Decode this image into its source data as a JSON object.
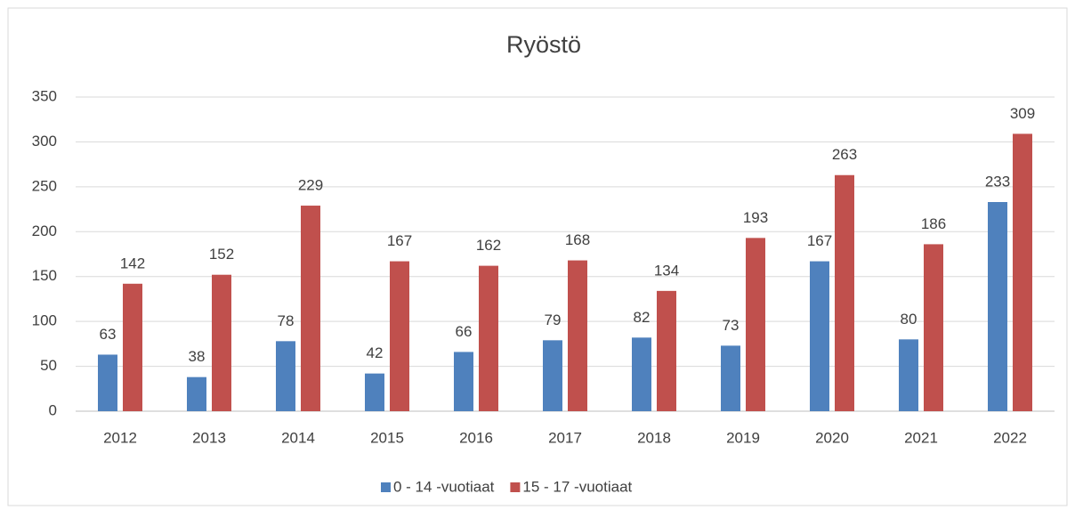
{
  "chart_data": {
    "type": "bar",
    "title": "Ryöstö",
    "categories": [
      "2012",
      "2013",
      "2014",
      "2015",
      "2016",
      "2017",
      "2018",
      "2019",
      "2020",
      "2021",
      "2022"
    ],
    "series": [
      {
        "name": "0 - 14 -vuotiaat",
        "color": "#4f81bd",
        "values": [
          63,
          38,
          78,
          42,
          66,
          79,
          82,
          73,
          167,
          80,
          233
        ]
      },
      {
        "name": "15 - 17 -vuotiaat",
        "color": "#c0504d",
        "values": [
          142,
          152,
          229,
          167,
          162,
          168,
          134,
          193,
          263,
          186,
          309
        ]
      }
    ],
    "ylim": [
      0,
      350
    ],
    "yticks": [
      0,
      50,
      100,
      150,
      200,
      250,
      300,
      350
    ],
    "grid": true,
    "legend": "bottom"
  }
}
